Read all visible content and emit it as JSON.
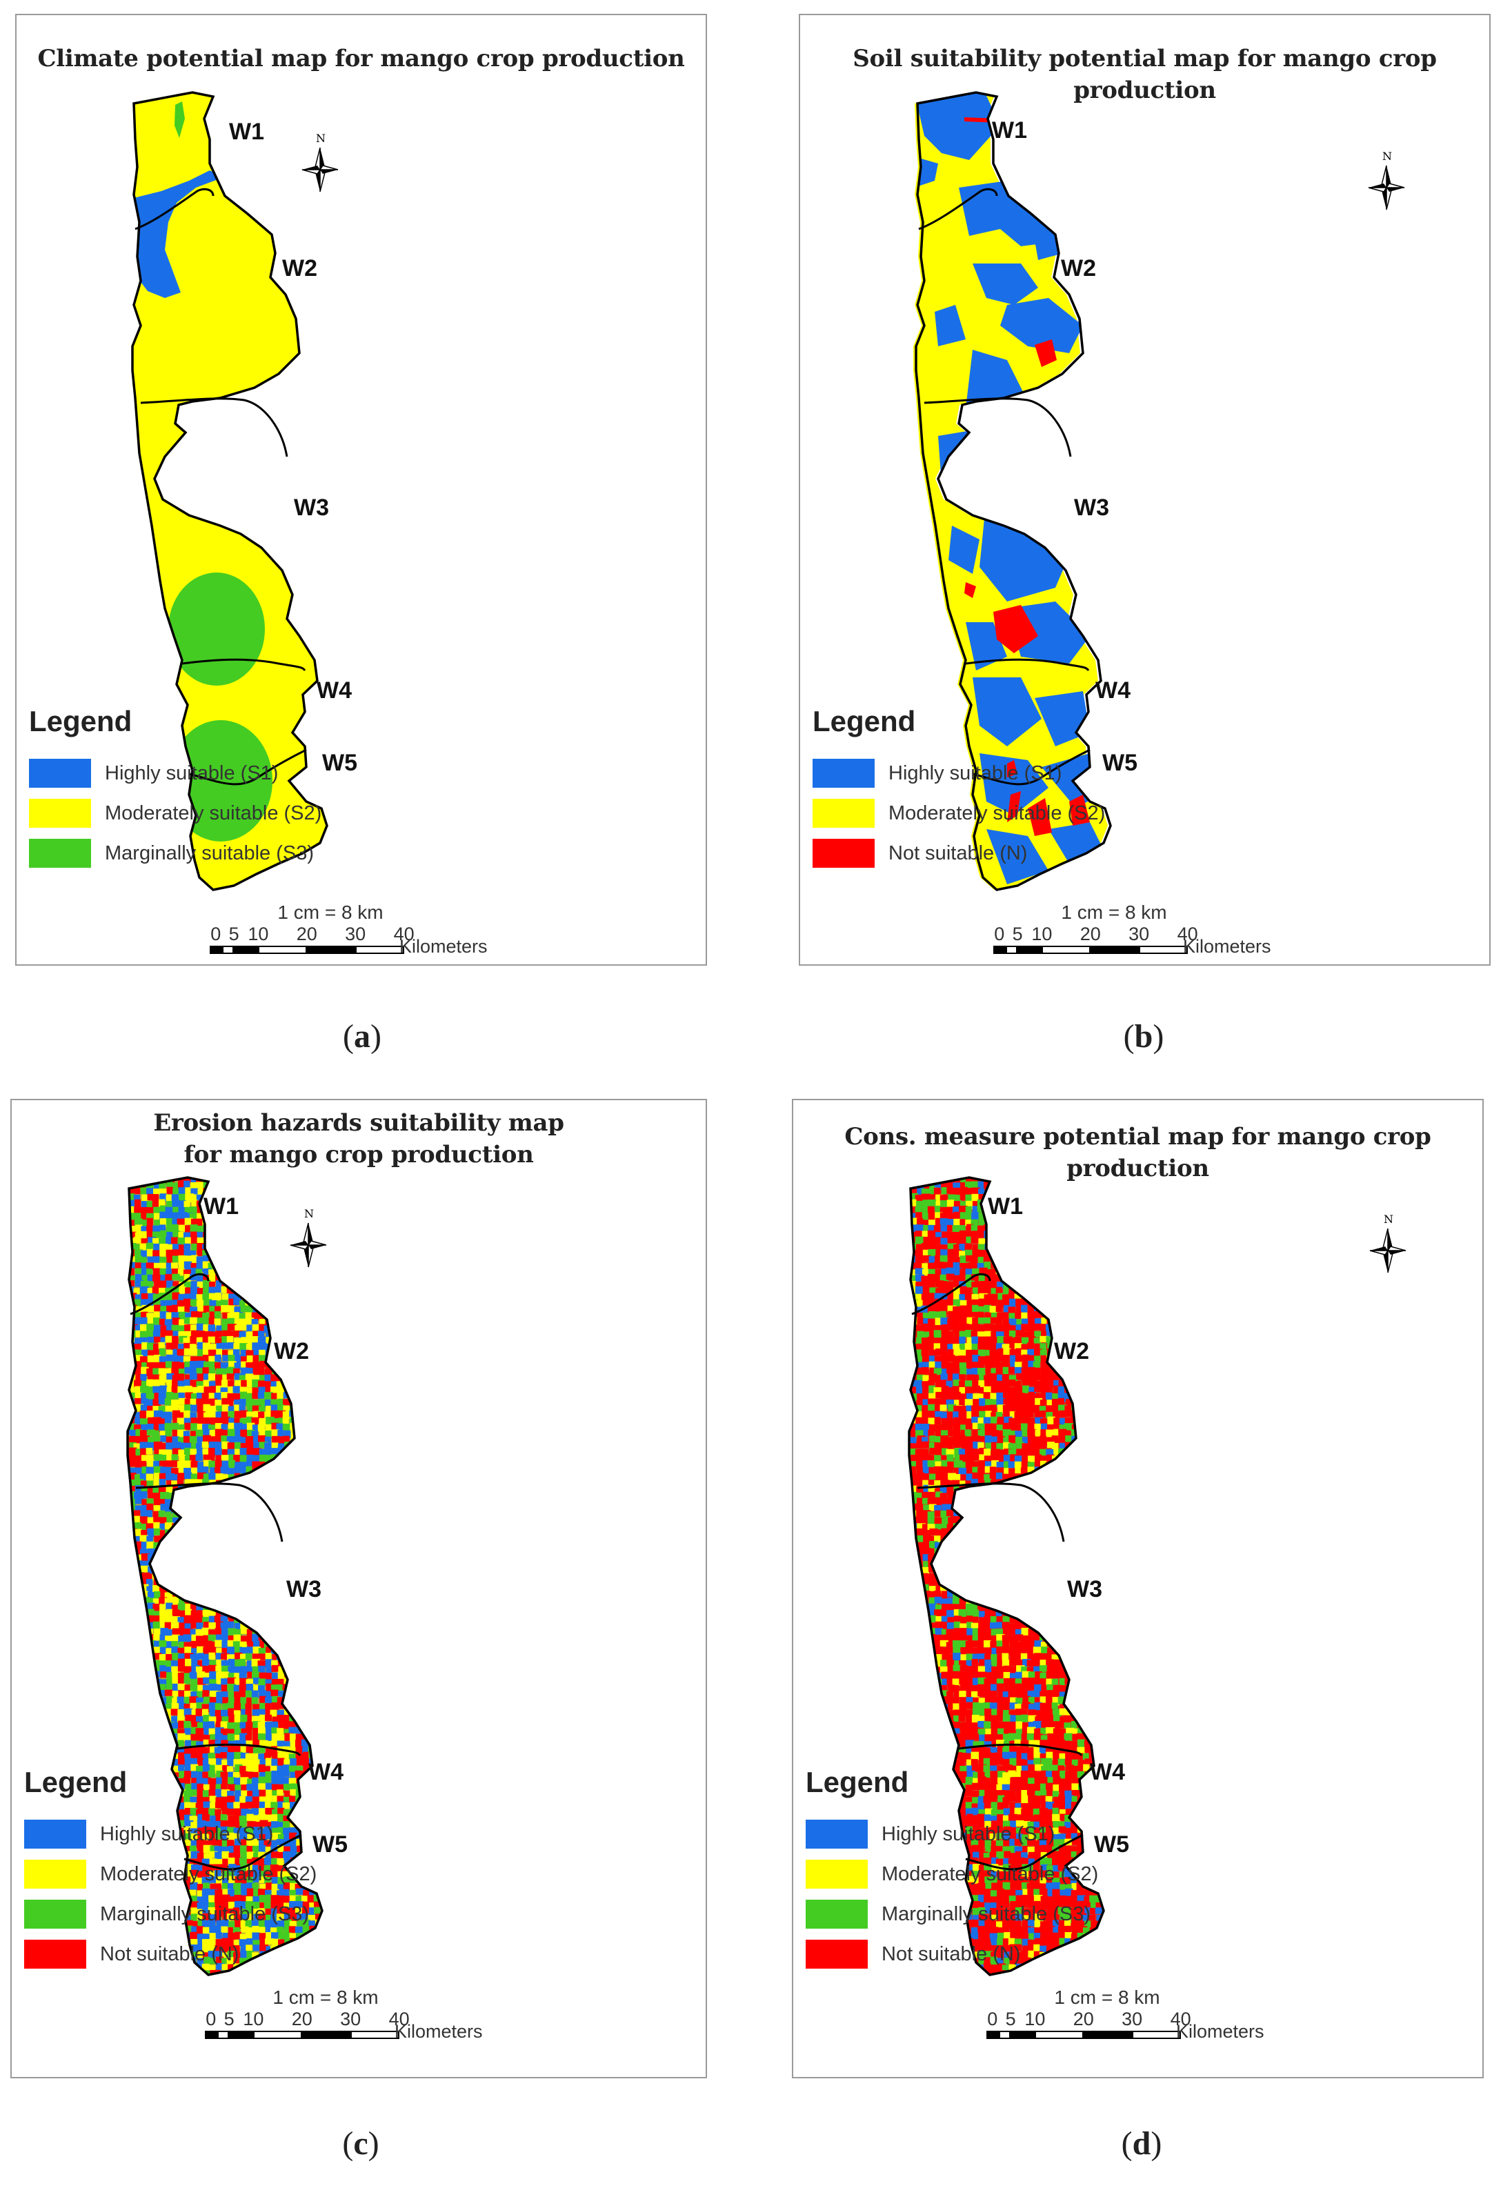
{
  "units": [
    "W1",
    "W2",
    "W3",
    "W4",
    "W5"
  ],
  "north_label": "N",
  "scale": {
    "ratio": "1 cm = 8 km",
    "ticks": [
      "0",
      "5",
      "10",
      "20",
      "30",
      "40"
    ],
    "unit": "Kilometers"
  },
  "colors": {
    "S1": "#1a6fe8",
    "S2": "#ffff00",
    "S3": "#44cc22",
    "N": "#ff0000",
    "boundary": "#000000"
  },
  "panels": [
    {
      "id": "a",
      "title": "Climate potential map for mango crop production",
      "legend_title": "Legend",
      "legend": [
        {
          "label": "Highly suitable (S1)",
          "color": "#1a6fe8"
        },
        {
          "label": "Moderately suitable (S2)",
          "color": "#ffff00"
        },
        {
          "label": "Marginally suitable (S3)",
          "color": "#44cc22"
        }
      ],
      "caption": "a"
    },
    {
      "id": "b",
      "title": "Soil suitability potential map for mango crop production",
      "legend_title": "Legend",
      "legend": [
        {
          "label": "Highly suitable (S1)",
          "color": "#1a6fe8"
        },
        {
          "label": "Moderately suitable (S2)",
          "color": "#ffff00"
        },
        {
          "label": "Not suitable (N)",
          "color": "#ff0000"
        }
      ],
      "caption": "b"
    },
    {
      "id": "c",
      "title_lines": [
        "Erosion hazards suitability map",
        "for mango crop production"
      ],
      "legend_title": "Legend",
      "legend": [
        {
          "label": "Highly suitable (S1)",
          "color": "#1a6fe8"
        },
        {
          "label": "Moderately suitable (S2)",
          "color": "#ffff00"
        },
        {
          "label": "Marginally suitable (S3)",
          "color": "#44cc22"
        },
        {
          "label": "Not suitable (N)",
          "color": "#ff0000"
        }
      ],
      "caption": "c"
    },
    {
      "id": "d",
      "title": "Cons. measure potential map for mango crop production",
      "legend_title": "Legend",
      "legend": [
        {
          "label": "Highly suitable (S1)",
          "color": "#1a6fe8"
        },
        {
          "label": "Moderately suitable (S2)",
          "color": "#ffff00"
        },
        {
          "label": "Marginally suitable (S3)",
          "color": "#44cc22"
        },
        {
          "label": "Not suitable (N)",
          "color": "#ff0000"
        }
      ],
      "caption": "d"
    }
  ]
}
